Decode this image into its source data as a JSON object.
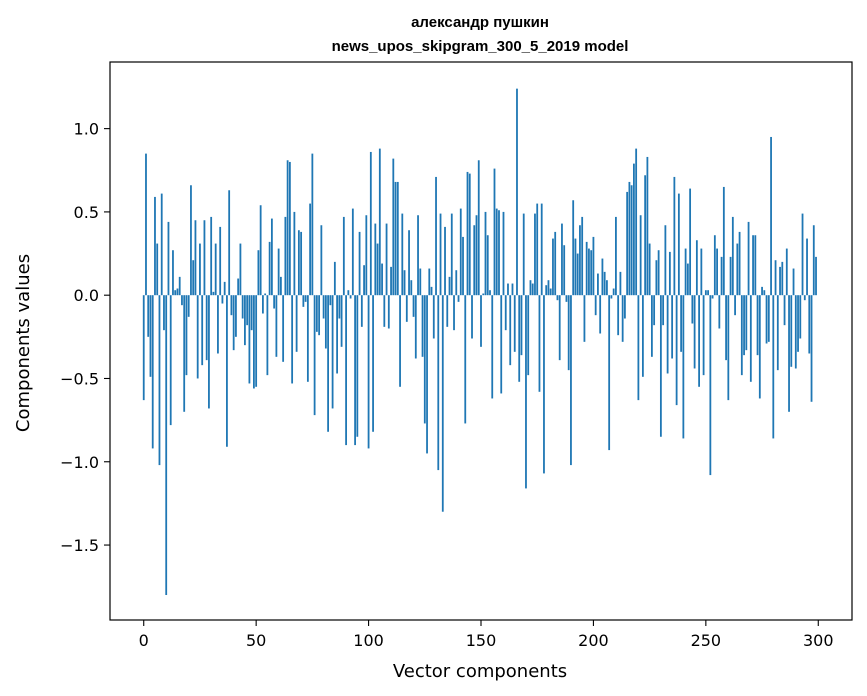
{
  "chart_data": {
    "type": "bar",
    "title": "александр пушкин",
    "subtitle": "news_upos_skipgram_300_5_2019 model",
    "xlabel": "Vector components",
    "ylabel": "Components values",
    "xlim": [
      -15,
      315
    ],
    "ylim": [
      -1.95,
      1.4
    ],
    "xticks": [
      0,
      50,
      100,
      150,
      200,
      250,
      300
    ],
    "xtick_labels": [
      "0",
      "50",
      "100",
      "150",
      "200",
      "250",
      "300"
    ],
    "yticks": [
      -1.5,
      -1.0,
      -0.5,
      0.0,
      0.5,
      1.0
    ],
    "ytick_labels": [
      "−1.5",
      "−1.0",
      "−0.5",
      "0.0",
      "0.5",
      "1.0"
    ],
    "bar_color": "#1f77b4",
    "grid": false,
    "legend": "none",
    "x_start": 0,
    "values": [
      -0.63,
      0.85,
      -0.25,
      -0.49,
      -0.92,
      0.59,
      0.31,
      -1.02,
      0.61,
      -0.21,
      -1.8,
      0.44,
      -0.78,
      0.27,
      0.03,
      0.04,
      0.11,
      -0.06,
      -0.7,
      -0.48,
      -0.13,
      0.66,
      0.21,
      0.45,
      -0.5,
      0.31,
      -0.42,
      0.45,
      -0.39,
      -0.68,
      0.47,
      0.02,
      0.31,
      -0.35,
      0.41,
      -0.05,
      0.08,
      -0.91,
      0.63,
      -0.12,
      -0.33,
      -0.25,
      0.1,
      0.31,
      -0.14,
      -0.3,
      -0.18,
      -0.53,
      -0.21,
      -0.56,
      -0.55,
      0.27,
      0.54,
      -0.11,
      0.01,
      -0.48,
      0.32,
      0.46,
      -0.08,
      -0.37,
      0.28,
      0.11,
      -0.4,
      0.47,
      0.81,
      0.8,
      -0.53,
      0.5,
      -0.34,
      0.39,
      0.38,
      -0.07,
      -0.04,
      -0.52,
      0.55,
      0.85,
      -0.72,
      -0.22,
      -0.24,
      0.42,
      -0.14,
      -0.32,
      -0.82,
      -0.06,
      -0.68,
      0.2,
      -0.47,
      -0.14,
      -0.31,
      0.47,
      -0.9,
      0.03,
      -0.02,
      0.52,
      -0.9,
      -0.85,
      0.38,
      -0.19,
      0.18,
      0.48,
      -0.92,
      0.86,
      -0.82,
      0.43,
      0.31,
      0.88,
      0.19,
      -0.19,
      0.43,
      -0.2,
      0.17,
      0.82,
      0.68,
      0.68,
      -0.55,
      0.49,
      0.15,
      -0.16,
      0.39,
      0.09,
      -0.13,
      -0.38,
      0.48,
      0.16,
      -0.37,
      -0.77,
      -0.95,
      0.16,
      0.05,
      -0.26,
      0.71,
      -1.05,
      0.49,
      -1.3,
      0.41,
      -0.19,
      0.11,
      0.49,
      -0.21,
      0.15,
      -0.04,
      0.52,
      0.35,
      -0.77,
      0.74,
      0.73,
      -0.26,
      0.42,
      0.48,
      0.81,
      -0.31,
      0.01,
      0.5,
      0.36,
      0.03,
      -0.62,
      0.76,
      0.52,
      0.51,
      -0.59,
      0.5,
      -0.21,
      0.07,
      -0.42,
      0.07,
      -0.34,
      1.24,
      -0.52,
      -0.36,
      0.49,
      -1.16,
      -0.48,
      0.09,
      0.07,
      0.49,
      0.55,
      -0.58,
      0.55,
      -1.07,
      0.06,
      0.09,
      0.04,
      0.34,
      0.38,
      -0.03,
      -0.39,
      0.43,
      0.3,
      -0.04,
      -0.45,
      -1.02,
      0.57,
      0.34,
      0.25,
      0.42,
      0.47,
      -0.28,
      0.32,
      0.28,
      0.27,
      0.35,
      -0.12,
      0.13,
      -0.23,
      0.22,
      0.14,
      0.09,
      -0.93,
      -0.02,
      0.04,
      0.47,
      -0.24,
      0.14,
      -0.28,
      -0.14,
      0.62,
      0.68,
      0.66,
      0.79,
      0.88,
      -0.63,
      0.48,
      -0.49,
      0.72,
      0.83,
      0.31,
      -0.37,
      -0.18,
      0.21,
      0.27,
      -0.85,
      -0.18,
      0.42,
      -0.47,
      0.26,
      -0.38,
      0.71,
      -0.66,
      0.61,
      -0.34,
      -0.86,
      0.28,
      0.19,
      0.64,
      -0.17,
      -0.44,
      0.33,
      -0.55,
      0.28,
      -0.48,
      0.03,
      0.03,
      -1.08,
      -0.02,
      0.36,
      0.28,
      -0.2,
      0.23,
      0.65,
      -0.39,
      -0.63,
      0.23,
      0.47,
      -0.12,
      0.31,
      0.38,
      -0.48,
      -0.36,
      -0.33,
      0.44,
      -0.52,
      0.36,
      0.36,
      -0.36,
      -0.62,
      0.05,
      0.03,
      -0.29,
      -0.28,
      0.95,
      -0.86,
      0.21,
      -0.45,
      0.17,
      0.2,
      -0.18,
      0.28,
      -0.7,
      -0.43,
      0.16,
      -0.44,
      -0.34,
      -0.26,
      0.49,
      -0.03,
      0.34,
      -0.35,
      -0.64,
      0.42,
      0.23
    ]
  }
}
